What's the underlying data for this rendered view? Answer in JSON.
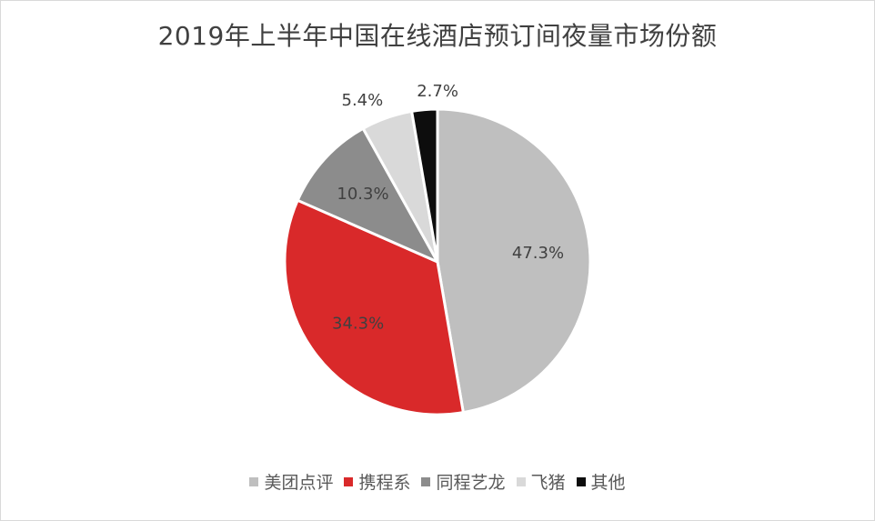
{
  "chart_data": {
    "type": "pie",
    "title": "2019年上半年中国在线酒店预订间夜量市场份额",
    "categories": [
      "美团点评",
      "携程系",
      "同程艺龙",
      "飞猪",
      "其他"
    ],
    "values": [
      47.3,
      34.3,
      10.3,
      5.4,
      2.7
    ],
    "labels": [
      "47.3%",
      "34.3%",
      "10.3%",
      "5.4%",
      "2.7%"
    ],
    "colors": [
      "#bfbfbf",
      "#d9292a",
      "#8c8c8c",
      "#d9d9d9",
      "#0d0d0d"
    ],
    "label_colors": [
      "#404040",
      "#404040",
      "#404040",
      "#404040",
      "#404040"
    ],
    "start_angle_deg": 0,
    "direction": "clockwise",
    "legend_position": "bottom"
  }
}
